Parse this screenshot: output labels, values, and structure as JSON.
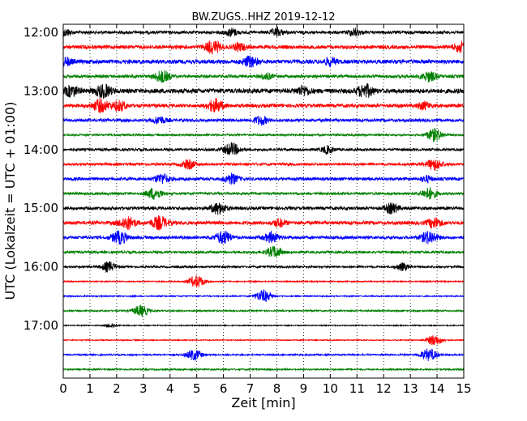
{
  "chart_data": {
    "type": "line",
    "title": "BW.ZUGS..HHZ 2019-12-12",
    "xlabel": "Zeit  [min]",
    "ylabel": "UTC (Lokalzeit = UTC + 01:00)",
    "xlim": [
      0,
      15
    ],
    "x_ticks": [
      "0",
      "1",
      "2",
      "3",
      "4",
      "5",
      "6",
      "7",
      "8",
      "9",
      "10",
      "11",
      "12",
      "13",
      "14",
      "15"
    ],
    "y_tick_labels": [
      "12:00",
      "13:00",
      "14:00",
      "15:00",
      "16:00",
      "17:00"
    ],
    "grid": "vertical dotted",
    "trace_colors": [
      "#000000",
      "#ff0000",
      "#0000ff",
      "#008000"
    ],
    "series": [
      {
        "start": "12:00",
        "amplitude": 0.3,
        "events": [
          [
            0.1,
            0.5
          ],
          [
            6.3,
            0.6
          ],
          [
            8.0,
            0.6
          ],
          [
            10.9,
            0.6
          ]
        ]
      },
      {
        "start": "12:15",
        "amplitude": 0.35,
        "events": [
          [
            5.6,
            1.0
          ],
          [
            6.6,
            0.6
          ],
          [
            14.9,
            0.8
          ]
        ]
      },
      {
        "start": "12:30",
        "amplitude": 0.4,
        "events": [
          [
            0.1,
            0.6
          ],
          [
            7.0,
            0.8
          ],
          [
            10.0,
            0.6
          ]
        ]
      },
      {
        "start": "12:45",
        "amplitude": 0.3,
        "events": [
          [
            3.7,
            0.9
          ],
          [
            7.6,
            0.5
          ],
          [
            13.7,
            0.8
          ]
        ]
      },
      {
        "start": "13:00",
        "amplitude": 0.45,
        "events": [
          [
            0.3,
            0.8
          ],
          [
            1.5,
            1.0
          ],
          [
            9.0,
            0.7
          ],
          [
            11.3,
            1.0
          ]
        ]
      },
      {
        "start": "13:15",
        "amplitude": 0.35,
        "events": [
          [
            1.4,
            1.0
          ],
          [
            2.1,
            0.8
          ],
          [
            5.7,
            1.0
          ],
          [
            13.5,
            0.6
          ]
        ]
      },
      {
        "start": "13:30",
        "amplitude": 0.3,
        "events": [
          [
            3.6,
            0.6
          ],
          [
            7.4,
            0.7
          ]
        ]
      },
      {
        "start": "13:45",
        "amplitude": 0.2,
        "events": [
          [
            13.9,
            1.0
          ]
        ]
      },
      {
        "start": "14:00",
        "amplitude": 0.25,
        "events": [
          [
            6.3,
            1.0
          ],
          [
            9.9,
            0.6
          ]
        ]
      },
      {
        "start": "14:15",
        "amplitude": 0.25,
        "events": [
          [
            4.7,
            0.7
          ],
          [
            13.9,
            0.9
          ]
        ]
      },
      {
        "start": "14:30",
        "amplitude": 0.3,
        "events": [
          [
            3.7,
            0.8
          ],
          [
            6.3,
            0.8
          ],
          [
            13.6,
            0.5
          ]
        ]
      },
      {
        "start": "14:45",
        "amplitude": 0.25,
        "events": [
          [
            3.4,
            0.9
          ],
          [
            13.7,
            0.9
          ]
        ]
      },
      {
        "start": "15:00",
        "amplitude": 0.3,
        "events": [
          [
            5.8,
            0.9
          ],
          [
            12.3,
            0.8
          ]
        ]
      },
      {
        "start": "15:15",
        "amplitude": 0.35,
        "events": [
          [
            2.4,
            1.0
          ],
          [
            3.6,
            1.0
          ],
          [
            8.1,
            0.6
          ],
          [
            13.9,
            0.8
          ]
        ]
      },
      {
        "start": "15:30",
        "amplitude": 0.3,
        "events": [
          [
            2.1,
            1.0
          ],
          [
            6.0,
            1.0
          ],
          [
            7.8,
            0.8
          ],
          [
            13.7,
            1.0
          ]
        ]
      },
      {
        "start": "15:45",
        "amplitude": 0.25,
        "events": [
          [
            7.9,
            0.9
          ]
        ]
      },
      {
        "start": "16:00",
        "amplitude": 0.2,
        "events": [
          [
            1.7,
            0.8
          ],
          [
            12.7,
            0.6
          ]
        ]
      },
      {
        "start": "16:15",
        "amplitude": 0.12,
        "events": [
          [
            5.0,
            1.0
          ]
        ]
      },
      {
        "start": "16:30",
        "amplitude": 0.12,
        "events": [
          [
            7.5,
            1.0
          ]
        ]
      },
      {
        "start": "16:45",
        "amplitude": 0.15,
        "events": [
          [
            2.9,
            0.9
          ]
        ]
      },
      {
        "start": "17:00",
        "amplitude": 0.1,
        "events": [
          [
            1.8,
            0.4
          ]
        ]
      },
      {
        "start": "17:15",
        "amplitude": 0.1,
        "events": [
          [
            13.9,
            0.9
          ]
        ]
      },
      {
        "start": "17:30",
        "amplitude": 0.15,
        "events": [
          [
            4.9,
            0.9
          ],
          [
            13.7,
            1.0
          ]
        ]
      },
      {
        "start": "17:45",
        "amplitude": 0.15,
        "events": []
      }
    ]
  }
}
